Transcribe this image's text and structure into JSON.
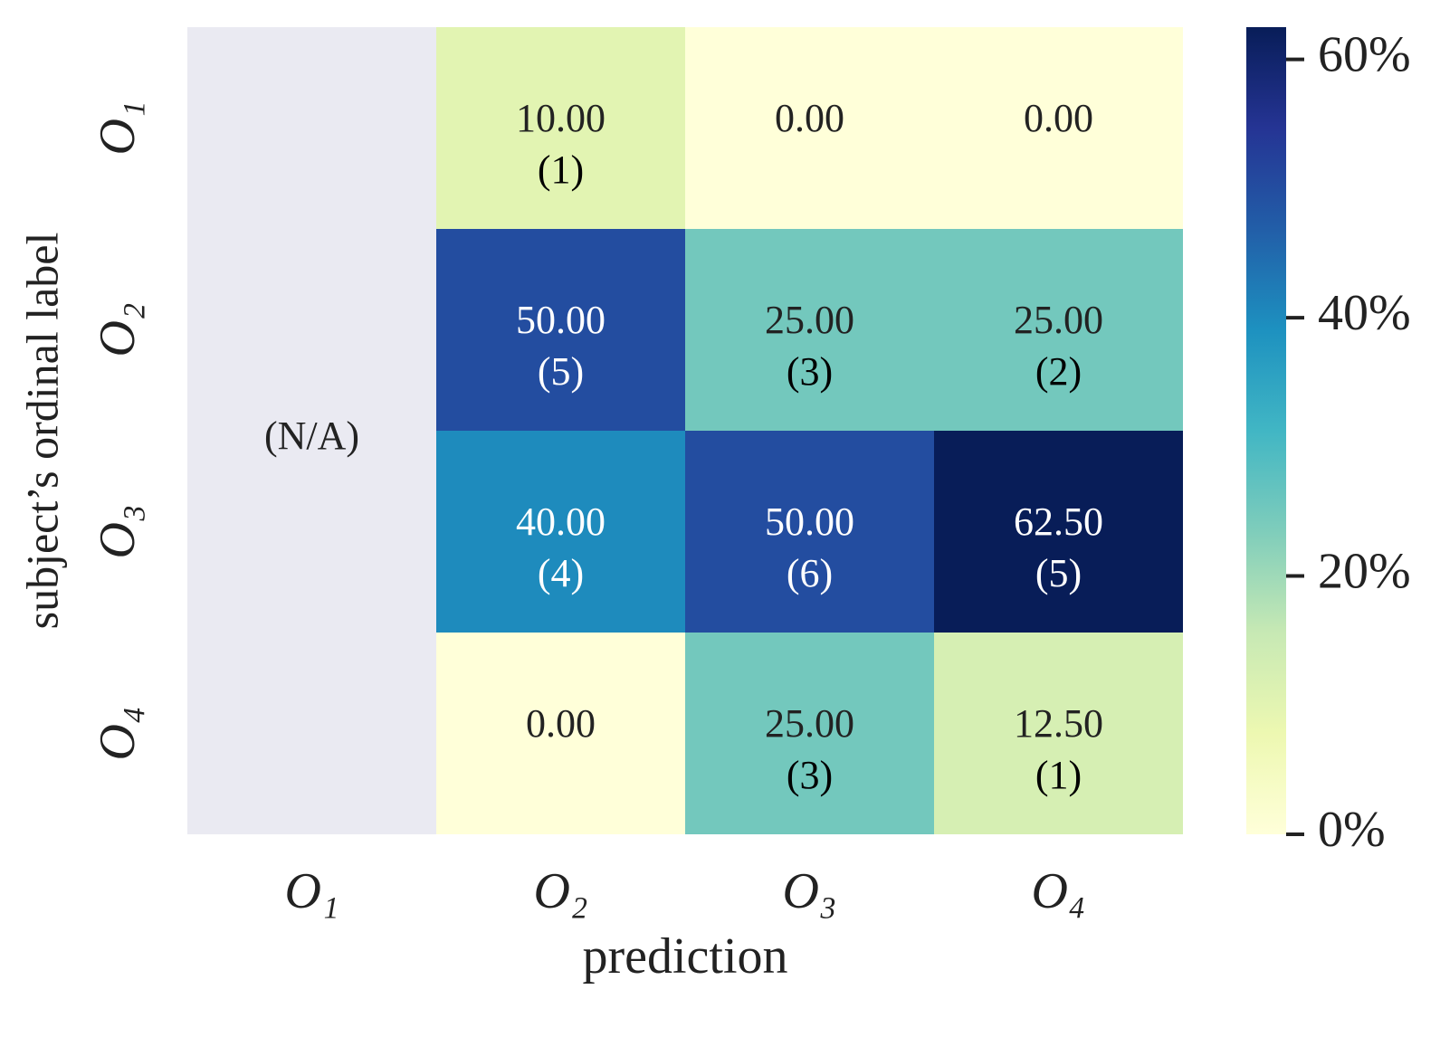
{
  "chart_data": {
    "type": "heatmap",
    "xlabel": "prediction",
    "ylabel": "subject’s ordinal label",
    "x_categories": [
      "O₁",
      "O₂",
      "O₃",
      "O₄"
    ],
    "y_categories": [
      "O₁",
      "O₂",
      "O₃",
      "O₄"
    ],
    "values": [
      [
        null,
        10,
        0,
        0
      ],
      [
        null,
        50,
        25,
        25
      ],
      [
        null,
        40,
        50,
        62.5
      ],
      [
        null,
        0,
        25,
        12.5
      ]
    ],
    "value_labels": [
      [
        null,
        "10.00",
        "0.00",
        "0.00"
      ],
      [
        null,
        "50.00",
        "25.00",
        "25.00"
      ],
      [
        null,
        "40.00",
        "50.00",
        "62.50"
      ],
      [
        null,
        "0.00",
        "25.00",
        "12.50"
      ]
    ],
    "count_labels": [
      [
        null,
        "(1)",
        null,
        null
      ],
      [
        null,
        "(5)",
        "(3)",
        "(2)"
      ],
      [
        null,
        "(4)",
        "(6)",
        "(5)"
      ],
      [
        null,
        null,
        "(3)",
        "(1)"
      ]
    ],
    "na_label": "(N/A)",
    "na_color": "#eaeaf2",
    "colormap": [
      "#ffffd9",
      "#edf8b1",
      "#c7e9b4",
      "#7fcdbb",
      "#41b6c4",
      "#1d91c0",
      "#225ea8",
      "#253494",
      "#081d58"
    ],
    "zlim": [
      0,
      62.5
    ],
    "zticks": [
      {
        "value": 0,
        "label": "0%"
      },
      {
        "value": 20,
        "label": "20%"
      },
      {
        "value": 40,
        "label": "40%"
      },
      {
        "value": 60,
        "label": "60%"
      }
    ]
  }
}
